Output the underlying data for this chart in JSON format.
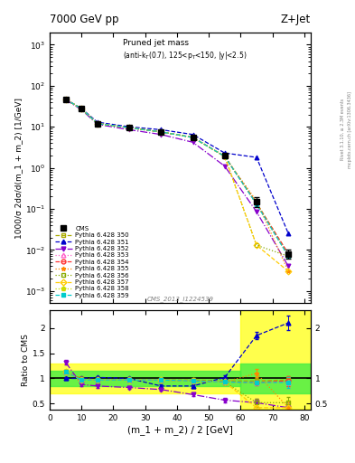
{
  "title_left": "7000 GeV pp",
  "title_right": "Z+Jet",
  "annotation": "Pruned jet mass",
  "annotation2": "(anti-k_{T}(0.7), 125<p_{T}<150, |y|<2.5)",
  "watermark": "CMS_2013_I1224539",
  "right_label1": "Rivet 3.1.10, ≥ 2.3M events",
  "right_label2": "mcplots.cern.ch [arXiv:1306.3436]",
  "ylabel_main": "1000/σ 2dσ/d(m_1 + m_2) [1/GeV]",
  "ylabel_ratio": "Ratio to CMS",
  "xlabel": "(m_1 + m_2) / 2 [GeV]",
  "xlim": [
    0,
    82
  ],
  "ylim_main": [
    0.0005,
    2000
  ],
  "ylim_ratio": [
    0.38,
    2.35
  ],
  "x_bins": [
    5,
    10,
    15,
    25,
    35,
    45,
    55,
    65,
    75
  ],
  "cms_y": [
    47,
    28,
    12,
    9.5,
    7.5,
    5.5,
    2.0,
    0.15,
    0.008
  ],
  "cms_yerr_lo": [
    3,
    2,
    1.0,
    0.8,
    0.6,
    0.4,
    0.2,
    0.04,
    0.002
  ],
  "cms_yerr_hi": [
    3,
    2,
    1.0,
    0.8,
    0.6,
    0.4,
    0.2,
    0.04,
    0.002
  ],
  "series": [
    {
      "label": "Pythia 6.428 350",
      "color": "#aaaa00",
      "marker": "s",
      "fillstyle": "none",
      "linestyle": "--",
      "y_main": [
        47,
        27,
        12,
        9.5,
        7.5,
        5.5,
        1.9,
        0.14,
        0.008
      ],
      "y_ratio": [
        1.13,
        1.0,
        0.97,
        0.97,
        0.97,
        0.97,
        0.95,
        0.95,
        0.97
      ],
      "y_ratio_err": [
        0.03,
        0.03,
        0.03,
        0.03,
        0.03,
        0.03,
        0.03,
        0.05,
        0.08
      ]
    },
    {
      "label": "Pythia 6.428 351",
      "color": "#0000cc",
      "marker": "^",
      "fillstyle": "full",
      "linestyle": "--",
      "y_main": [
        47,
        28,
        13,
        10,
        8.5,
        6.5,
        2.3,
        1.8,
        0.025
      ],
      "y_ratio": [
        1.0,
        1.0,
        1.02,
        1.0,
        0.85,
        0.85,
        1.02,
        1.85,
        2.1
      ],
      "y_ratio_err": [
        0.03,
        0.03,
        0.03,
        0.03,
        0.03,
        0.03,
        0.05,
        0.08,
        0.15
      ]
    },
    {
      "label": "Pythia 6.428 352",
      "color": "#8800cc",
      "marker": "v",
      "fillstyle": "full",
      "linestyle": "-.",
      "y_main": [
        46,
        26,
        11.5,
        8.5,
        6.5,
        4.2,
        1.1,
        0.085,
        0.004
      ],
      "y_ratio": [
        1.32,
        0.88,
        0.85,
        0.82,
        0.78,
        0.68,
        0.57,
        0.52,
        0.42
      ],
      "y_ratio_err": [
        0.05,
        0.03,
        0.03,
        0.03,
        0.03,
        0.03,
        0.05,
        0.08,
        0.1
      ]
    },
    {
      "label": "Pythia 6.428 353",
      "color": "#ff66cc",
      "marker": "^",
      "fillstyle": "none",
      "linestyle": ":",
      "y_main": [
        47,
        27.5,
        12,
        9.5,
        7.5,
        5.5,
        1.9,
        0.13,
        0.008
      ],
      "y_ratio": [
        1.13,
        0.97,
        0.97,
        0.97,
        0.97,
        0.95,
        0.93,
        0.92,
        0.92
      ],
      "y_ratio_err": [
        0.03,
        0.03,
        0.03,
        0.03,
        0.03,
        0.03,
        0.04,
        0.06,
        0.1
      ]
    },
    {
      "label": "Pythia 6.428 354",
      "color": "#ff3333",
      "marker": "o",
      "fillstyle": "none",
      "linestyle": "--",
      "y_main": [
        47,
        27.5,
        12,
        9.5,
        7.5,
        5.5,
        1.9,
        0.135,
        0.008
      ],
      "y_ratio": [
        1.13,
        0.97,
        0.97,
        0.97,
        0.97,
        0.95,
        0.93,
        0.92,
        0.95
      ],
      "y_ratio_err": [
        0.03,
        0.03,
        0.03,
        0.03,
        0.03,
        0.03,
        0.04,
        0.06,
        0.1
      ]
    },
    {
      "label": "Pythia 6.428 355",
      "color": "#ff8800",
      "marker": "*",
      "fillstyle": "full",
      "linestyle": ":",
      "y_main": [
        47,
        27.5,
        12,
        9.5,
        7.5,
        5.5,
        1.9,
        0.155,
        0.003
      ],
      "y_ratio": [
        1.13,
        0.97,
        0.97,
        0.97,
        0.97,
        0.95,
        0.93,
        1.1,
        0.42
      ],
      "y_ratio_err": [
        0.03,
        0.03,
        0.03,
        0.03,
        0.03,
        0.03,
        0.04,
        0.08,
        0.12
      ]
    },
    {
      "label": "Pythia 6.428 356",
      "color": "#88aa00",
      "marker": "s",
      "fillstyle": "none",
      "linestyle": ":",
      "y_main": [
        47,
        27.5,
        12,
        9.5,
        7.5,
        5.5,
        1.9,
        0.013,
        0.007
      ],
      "y_ratio": [
        1.13,
        0.97,
        0.97,
        0.97,
        0.97,
        0.95,
        0.93,
        0.52,
        0.52
      ],
      "y_ratio_err": [
        0.03,
        0.03,
        0.03,
        0.03,
        0.03,
        0.03,
        0.04,
        0.08,
        0.12
      ]
    },
    {
      "label": "Pythia 6.428 357",
      "color": "#ffcc00",
      "marker": "D",
      "fillstyle": "none",
      "linestyle": "--",
      "y_main": [
        47,
        27.5,
        12,
        9.5,
        7.5,
        5.5,
        1.9,
        0.013,
        0.003
      ],
      "y_ratio": [
        1.13,
        0.97,
        0.97,
        0.97,
        0.97,
        0.95,
        0.93,
        0.42,
        0.42
      ],
      "y_ratio_err": [
        0.03,
        0.03,
        0.03,
        0.03,
        0.03,
        0.03,
        0.04,
        0.1,
        0.12
      ]
    },
    {
      "label": "Pythia 6.428 358",
      "color": "#ccdd00",
      "marker": "p",
      "fillstyle": "full",
      "linestyle": ":",
      "y_main": [
        47,
        27.5,
        12,
        9.5,
        7.5,
        5.5,
        1.9,
        0.13,
        0.007
      ],
      "y_ratio": [
        1.13,
        0.97,
        0.97,
        0.97,
        0.97,
        0.95,
        0.93,
        0.92,
        0.92
      ],
      "y_ratio_err": [
        0.03,
        0.03,
        0.03,
        0.03,
        0.03,
        0.03,
        0.04,
        0.06,
        0.1
      ]
    },
    {
      "label": "Pythia 6.428 359",
      "color": "#00cccc",
      "marker": "s",
      "fillstyle": "full",
      "linestyle": "--",
      "y_main": [
        47,
        27.5,
        12,
        9.5,
        7.5,
        5.5,
        1.9,
        0.13,
        0.007
      ],
      "y_ratio": [
        1.13,
        0.97,
        0.97,
        0.97,
        0.97,
        0.95,
        0.93,
        0.92,
        0.92
      ],
      "y_ratio_err": [
        0.03,
        0.03,
        0.03,
        0.03,
        0.03,
        0.03,
        0.04,
        0.06,
        0.1
      ]
    }
  ],
  "ratio_band_yellow": {
    "xmin": 0,
    "xmax": 60,
    "ymin": 0.7,
    "ymax": 1.3
  },
  "ratio_band_green": {
    "xmin": 0,
    "xmax": 60,
    "ymin": 0.85,
    "ymax": 1.15
  },
  "ratio_band_yellow2": {
    "xmin": 60,
    "xmax": 82,
    "ymin": 1.3,
    "ymax": 1.7
  },
  "ratio_band_green2": {
    "xmin": 60,
    "xmax": 82,
    "ymin": 0.7,
    "ymax": 1.3
  }
}
